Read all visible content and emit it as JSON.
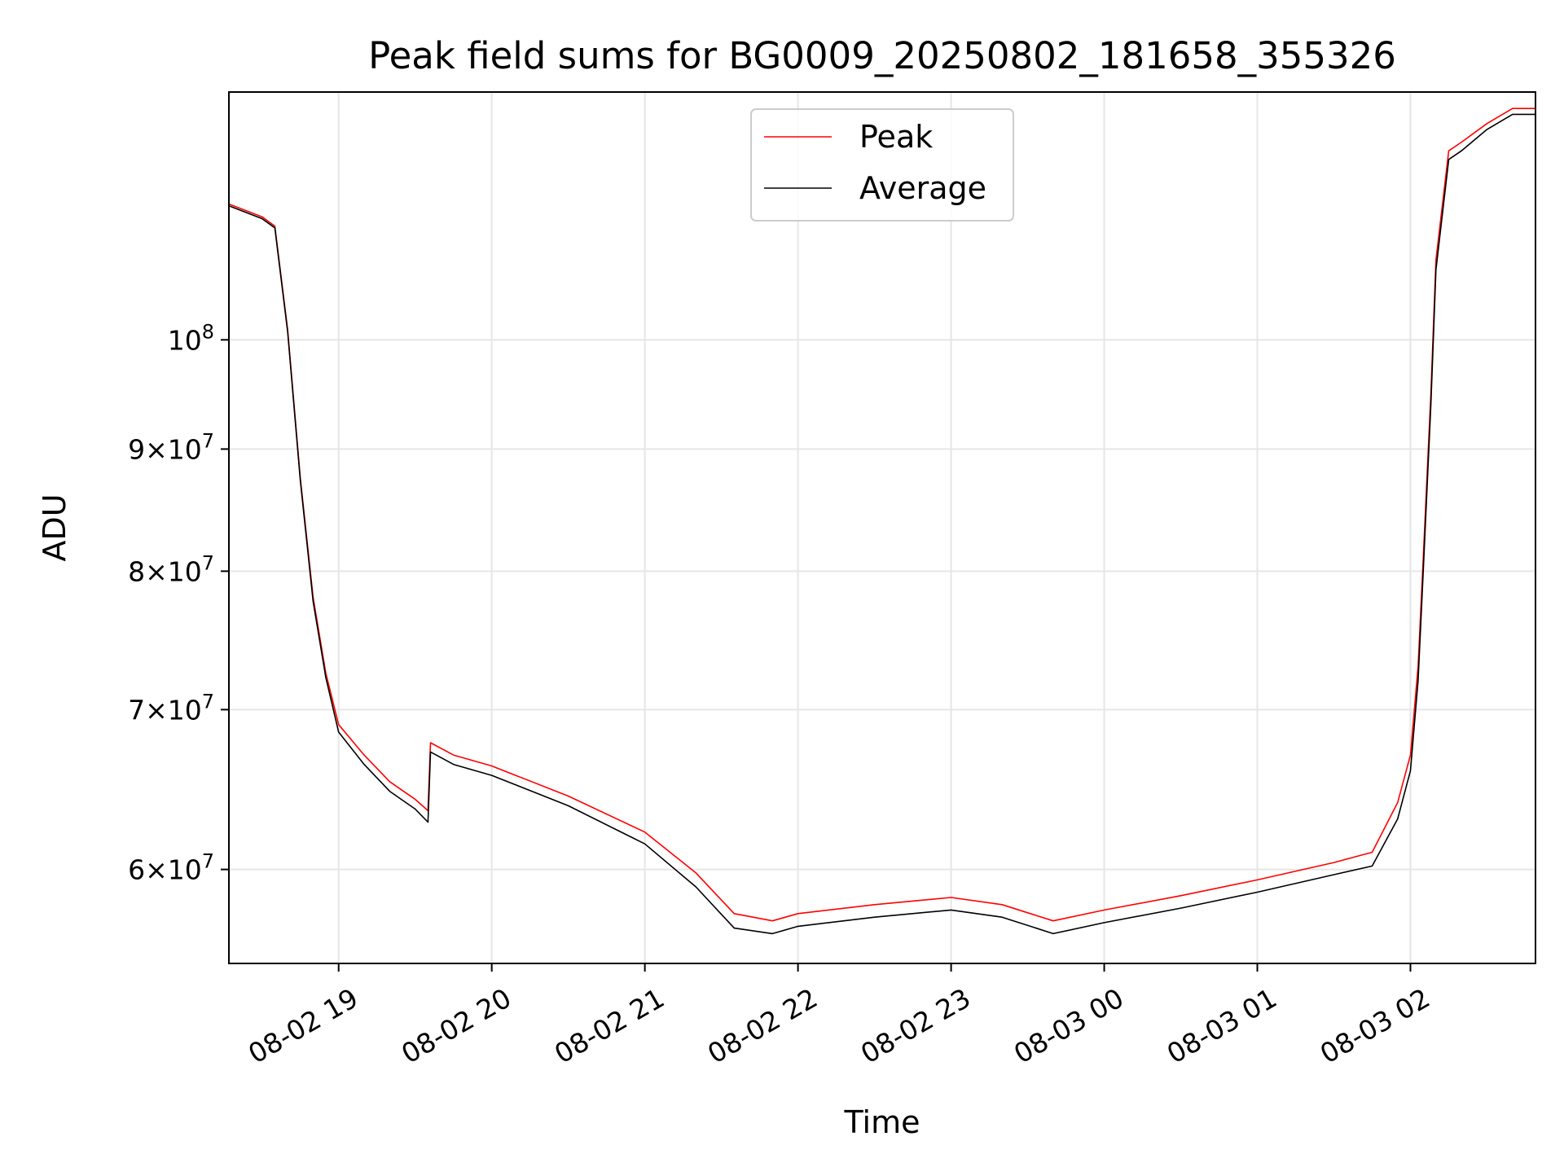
{
  "chart_data": {
    "type": "line",
    "title": "Peak field sums for BG0009_20250802_181658_355326",
    "xlabel": "Time",
    "ylabel": "ADU",
    "yscale": "log",
    "xlim": [
      "2025-08-02 18:17",
      "2025-08-03 02:49"
    ],
    "ylim": [
      54800000,
      127000000
    ],
    "grid": true,
    "legend_position": "top-center",
    "x_ticks": [
      {
        "value": "2025-08-02 19:00",
        "label": "08-02 19"
      },
      {
        "value": "2025-08-02 20:00",
        "label": "08-02 20"
      },
      {
        "value": "2025-08-02 21:00",
        "label": "08-02 21"
      },
      {
        "value": "2025-08-02 22:00",
        "label": "08-02 22"
      },
      {
        "value": "2025-08-02 23:00",
        "label": "08-02 23"
      },
      {
        "value": "2025-08-03 00:00",
        "label": "08-03 00"
      },
      {
        "value": "2025-08-03 01:00",
        "label": "08-03 01"
      },
      {
        "value": "2025-08-03 02:00",
        "label": "08-03 02"
      }
    ],
    "y_ticks": [
      {
        "value": 60000000,
        "mantissa": "6",
        "exp": "7"
      },
      {
        "value": 70000000,
        "mantissa": "7",
        "exp": "7"
      },
      {
        "value": 80000000,
        "mantissa": "8",
        "exp": "7"
      },
      {
        "value": 90000000,
        "mantissa": "9",
        "exp": "7"
      },
      {
        "value": 100000000,
        "mantissa": "",
        "exp": "8"
      }
    ],
    "series": [
      {
        "name": "Peak",
        "color": "#ff0000",
        "x": [
          "2025-08-02 18:17",
          "2025-08-02 18:30",
          "2025-08-02 18:35",
          "2025-08-02 18:40",
          "2025-08-02 18:45",
          "2025-08-02 18:50",
          "2025-08-02 18:55",
          "2025-08-02 19:00",
          "2025-08-02 19:10",
          "2025-08-02 19:20",
          "2025-08-02 19:30",
          "2025-08-02 19:35",
          "2025-08-02 19:36",
          "2025-08-02 19:45",
          "2025-08-02 20:00",
          "2025-08-02 20:30",
          "2025-08-02 21:00",
          "2025-08-02 21:20",
          "2025-08-02 21:35",
          "2025-08-02 21:50",
          "2025-08-02 22:00",
          "2025-08-02 22:30",
          "2025-08-02 23:00",
          "2025-08-02 23:20",
          "2025-08-02 23:40",
          "2025-08-03 00:00",
          "2025-08-03 00:30",
          "2025-08-03 01:00",
          "2025-08-03 01:30",
          "2025-08-03 01:45",
          "2025-08-03 01:55",
          "2025-08-03 02:00",
          "2025-08-03 02:03",
          "2025-08-03 02:05",
          "2025-08-03 02:08",
          "2025-08-03 02:10",
          "2025-08-03 02:15",
          "2025-08-03 02:20",
          "2025-08-03 02:30",
          "2025-08-03 02:40",
          "2025-08-03 02:49"
        ],
        "y": [
          114000000,
          112600000,
          111600000,
          101000000,
          87500000,
          78000000,
          72500000,
          69000000,
          67000000,
          65300000,
          64200000,
          63500000,
          67800000,
          67000000,
          66300000,
          64400000,
          62200000,
          59800000,
          57500000,
          57100000,
          57500000,
          58000000,
          58400000,
          58000000,
          57100000,
          57700000,
          58500000,
          59400000,
          60400000,
          61000000,
          64000000,
          67000000,
          73000000,
          81000000,
          95000000,
          108000000,
          120000000,
          121000000,
          123200000,
          125000000,
          125000000
        ]
      },
      {
        "name": "Average",
        "color": "#000000",
        "x": [
          "2025-08-02 18:17",
          "2025-08-02 18:30",
          "2025-08-02 18:35",
          "2025-08-02 18:40",
          "2025-08-02 18:45",
          "2025-08-02 18:50",
          "2025-08-02 18:55",
          "2025-08-02 19:00",
          "2025-08-02 19:10",
          "2025-08-02 19:20",
          "2025-08-02 19:30",
          "2025-08-02 19:35",
          "2025-08-02 19:36",
          "2025-08-02 19:45",
          "2025-08-02 20:00",
          "2025-08-02 20:30",
          "2025-08-02 21:00",
          "2025-08-02 21:20",
          "2025-08-02 21:35",
          "2025-08-02 21:50",
          "2025-08-02 22:00",
          "2025-08-02 22:30",
          "2025-08-02 23:00",
          "2025-08-02 23:20",
          "2025-08-02 23:40",
          "2025-08-03 00:00",
          "2025-08-03 00:30",
          "2025-08-03 01:00",
          "2025-08-03 01:30",
          "2025-08-03 01:45",
          "2025-08-03 01:55",
          "2025-08-03 02:00",
          "2025-08-03 02:03",
          "2025-08-03 02:05",
          "2025-08-03 02:08",
          "2025-08-03 02:10",
          "2025-08-03 02:15",
          "2025-08-03 02:20",
          "2025-08-03 02:30",
          "2025-08-03 02:40",
          "2025-08-03 02:49"
        ],
        "y": [
          113800000,
          112400000,
          111400000,
          100800000,
          87300000,
          77700000,
          72200000,
          68500000,
          66400000,
          64700000,
          63600000,
          62800000,
          67200000,
          66400000,
          65700000,
          63800000,
          61500000,
          59000000,
          56700000,
          56400000,
          56800000,
          57300000,
          57700000,
          57300000,
          56400000,
          57000000,
          57800000,
          58700000,
          59700000,
          60200000,
          63000000,
          66000000,
          72000000,
          80000000,
          94000000,
          107000000,
          119000000,
          120000000,
          122500000,
          124300000,
          124300000
        ]
      }
    ]
  }
}
